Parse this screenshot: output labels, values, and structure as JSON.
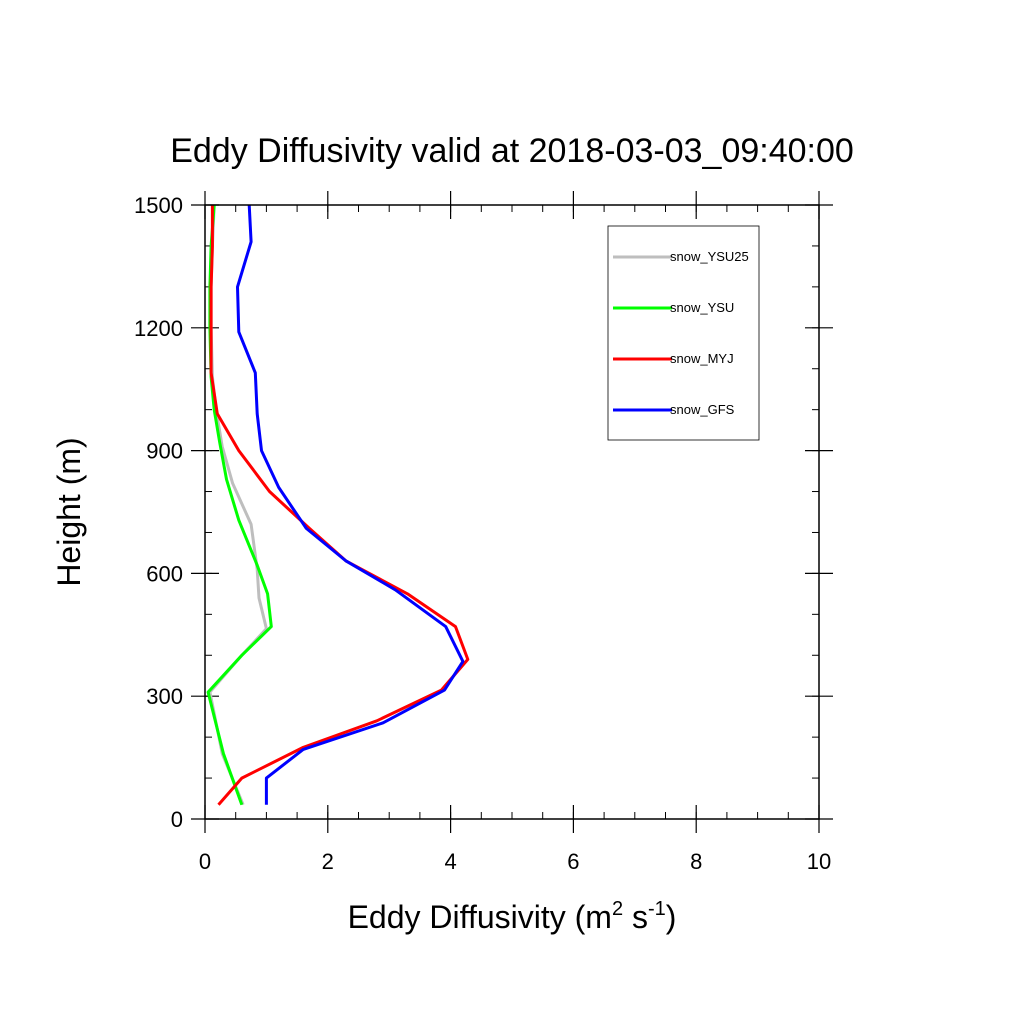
{
  "chart_data": {
    "type": "line",
    "title": "Eddy Diffusivity valid at 2018-03-03_09:40:00",
    "xlabel": {
      "text": "Eddy Diffusivity (m",
      "sup1": "2",
      "mid": " s",
      "sup2": "-1",
      "end": ")"
    },
    "ylabel": "Height (m)",
    "xlim": [
      0,
      10
    ],
    "ylim": [
      0,
      1500
    ],
    "x_ticks": [
      0,
      2,
      4,
      6,
      8,
      10
    ],
    "y_ticks": [
      0,
      300,
      600,
      900,
      1200,
      1500
    ],
    "x_tick_labels": [
      "0",
      "2",
      "4",
      "6",
      "8",
      "10"
    ],
    "y_tick_labels": [
      "0",
      "300",
      "600",
      "900",
      "1200",
      "1500"
    ],
    "grid": false,
    "legend_position": "top-right",
    "series": [
      {
        "name": "snow_YSU25",
        "color": "#bebebe",
        "points": [
          [
            0.62,
            35
          ],
          [
            0.28,
            160
          ],
          [
            0.08,
            310
          ],
          [
            0.6,
            400
          ],
          [
            1.0,
            465
          ],
          [
            0.88,
            540
          ],
          [
            0.85,
            610
          ],
          [
            0.75,
            720
          ],
          [
            0.45,
            820
          ],
          [
            0.28,
            910
          ],
          [
            0.18,
            1000
          ],
          [
            0.12,
            1080
          ],
          [
            0.1,
            1200
          ],
          [
            0.1,
            1300
          ],
          [
            0.12,
            1400
          ],
          [
            0.15,
            1500
          ]
        ]
      },
      {
        "name": "snow_YSU",
        "color": "#00ff00",
        "points": [
          [
            0.6,
            35
          ],
          [
            0.3,
            160
          ],
          [
            0.05,
            310
          ],
          [
            0.6,
            400
          ],
          [
            1.08,
            470
          ],
          [
            1.02,
            550
          ],
          [
            0.85,
            620
          ],
          [
            0.55,
            730
          ],
          [
            0.35,
            830
          ],
          [
            0.24,
            920
          ],
          [
            0.15,
            1000
          ],
          [
            0.1,
            1080
          ],
          [
            0.08,
            1200
          ],
          [
            0.08,
            1300
          ],
          [
            0.1,
            1400
          ],
          [
            0.15,
            1500
          ]
        ]
      },
      {
        "name": "snow_MYJ",
        "color": "#ff0000",
        "points": [
          [
            0.22,
            35
          ],
          [
            0.6,
            100
          ],
          [
            1.6,
            175
          ],
          [
            2.8,
            240
          ],
          [
            3.85,
            315
          ],
          [
            4.28,
            390
          ],
          [
            4.08,
            470
          ],
          [
            3.3,
            550
          ],
          [
            2.3,
            630
          ],
          [
            1.7,
            710
          ],
          [
            1.05,
            800
          ],
          [
            0.55,
            900
          ],
          [
            0.2,
            990
          ],
          [
            0.1,
            1090
          ],
          [
            0.1,
            1200
          ],
          [
            0.1,
            1300
          ],
          [
            0.12,
            1400
          ],
          [
            0.12,
            1500
          ]
        ]
      },
      {
        "name": "snow_GFS",
        "color": "#0000ff",
        "points": [
          [
            1.0,
            35
          ],
          [
            1.0,
            100
          ],
          [
            1.6,
            170
          ],
          [
            2.9,
            235
          ],
          [
            3.9,
            315
          ],
          [
            4.2,
            385
          ],
          [
            3.92,
            470
          ],
          [
            3.1,
            560
          ],
          [
            2.3,
            630
          ],
          [
            1.65,
            710
          ],
          [
            1.2,
            810
          ],
          [
            0.92,
            900
          ],
          [
            0.85,
            990
          ],
          [
            0.82,
            1090
          ],
          [
            0.55,
            1190
          ],
          [
            0.53,
            1300
          ],
          [
            0.75,
            1410
          ],
          [
            0.72,
            1500
          ]
        ]
      }
    ]
  }
}
